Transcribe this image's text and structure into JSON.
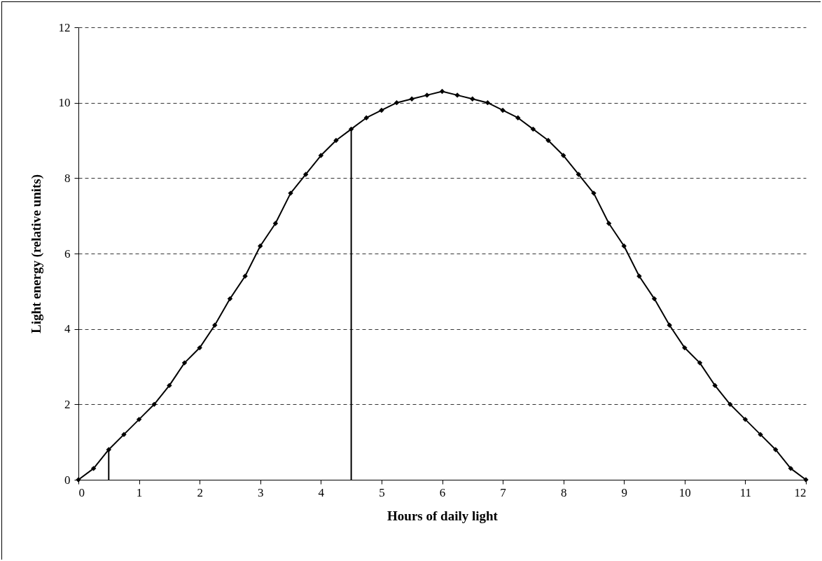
{
  "chart_data": {
    "type": "line",
    "xlabel": "Hours of daily light",
    "ylabel": "Light energy (relative units)",
    "xlim": [
      0,
      12
    ],
    "xticks": [
      0,
      1,
      2,
      3,
      4,
      5,
      6,
      7,
      8,
      9,
      10,
      11,
      12
    ],
    "ylim": [
      0,
      12
    ],
    "yticks": [
      0,
      2,
      4,
      6,
      8,
      10,
      12
    ],
    "grid": "y",
    "marker": "diamond",
    "line_style": "solid",
    "series": [
      {
        "color": "#000000",
        "x": [
          0,
          0.25,
          0.5,
          0.75,
          1,
          1.25,
          1.5,
          1.75,
          2,
          2.25,
          2.5,
          2.75,
          3,
          3.25,
          3.5,
          3.75,
          4,
          4.25,
          4.5,
          4.75,
          5,
          5.25,
          5.5,
          5.75,
          6,
          6.25,
          6.5,
          6.75,
          7,
          7.25,
          7.5,
          7.75,
          8,
          8.25,
          8.5,
          8.75,
          9,
          9.25,
          9.5,
          9.75,
          10,
          10.25,
          10.5,
          10.75,
          11,
          11.25,
          11.5,
          11.75,
          12
        ],
        "values": [
          0,
          0.3,
          0.8,
          1.2,
          1.6,
          2.0,
          2.5,
          3.1,
          3.5,
          4.1,
          4.8,
          5.4,
          6.2,
          6.8,
          7.6,
          8.1,
          8.6,
          9.0,
          9.3,
          9.6,
          9.8,
          10.0,
          10.1,
          10.2,
          10.3,
          10.2,
          10.1,
          10.0,
          9.8,
          9.6,
          9.3,
          9.0,
          8.6,
          8.1,
          7.6,
          6.8,
          6.2,
          5.4,
          4.8,
          4.1,
          3.5,
          3.1,
          2.5,
          2.0,
          1.6,
          1.2,
          0.8,
          0.3,
          0
        ]
      },
      {
        "type": "line",
        "marker": "none",
        "color": "#000000",
        "x": [
          0.5,
          0.5
        ],
        "values": [
          0,
          0.8
        ]
      },
      {
        "type": "line",
        "marker": "none",
        "color": "#000000",
        "x": [
          4.5,
          4.5
        ],
        "values": [
          0,
          9.3
        ]
      }
    ]
  }
}
